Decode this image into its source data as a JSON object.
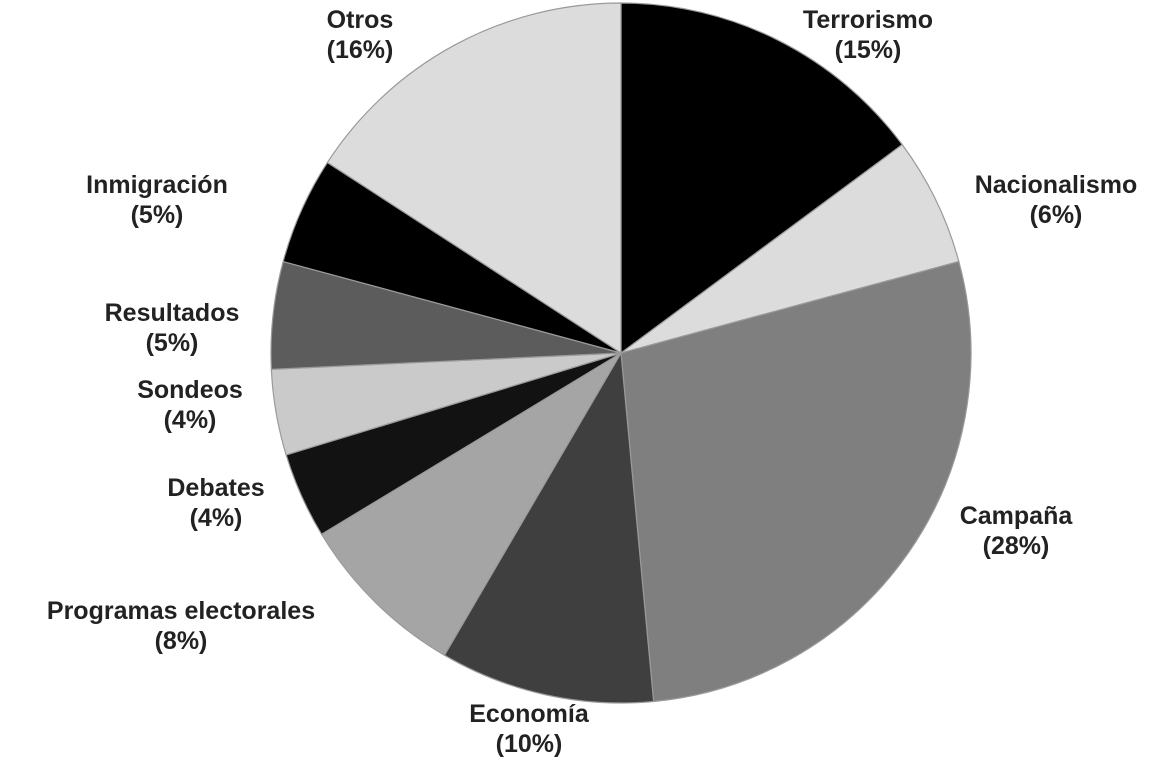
{
  "chart_data": {
    "type": "pie",
    "title": "",
    "start_angle_deg": 0,
    "direction": "clockwise",
    "slices": [
      {
        "label": "Terrorismo",
        "pct_label": "(15%)",
        "value": 15,
        "color": "#000000"
      },
      {
        "label": "Nacionalismo",
        "pct_label": "(6%)",
        "value": 6,
        "color": "#dcdcdc"
      },
      {
        "label": "Campaña",
        "pct_label": "(28%)",
        "value": 28,
        "color": "#7f7f7f"
      },
      {
        "label": "Economía",
        "pct_label": "(10%)",
        "value": 10,
        "color": "#3f3f3f"
      },
      {
        "label": "Programas electorales",
        "pct_label": "(8%)",
        "value": 8,
        "color": "#a5a5a5"
      },
      {
        "label": "Debates",
        "pct_label": "(4%)",
        "value": 4,
        "color": "#121212"
      },
      {
        "label": "Sondeos",
        "pct_label": "(4%)",
        "value": 4,
        "color": "#cacaca"
      },
      {
        "label": "Resultados",
        "pct_label": "(5%)",
        "value": 5,
        "color": "#5c5c5c"
      },
      {
        "label": "Inmigración",
        "pct_label": "(5%)",
        "value": 5,
        "color": "#000000"
      },
      {
        "label": "Otros",
        "pct_label": "(16%)",
        "value": 16,
        "color": "#dcdcdc"
      }
    ]
  }
}
